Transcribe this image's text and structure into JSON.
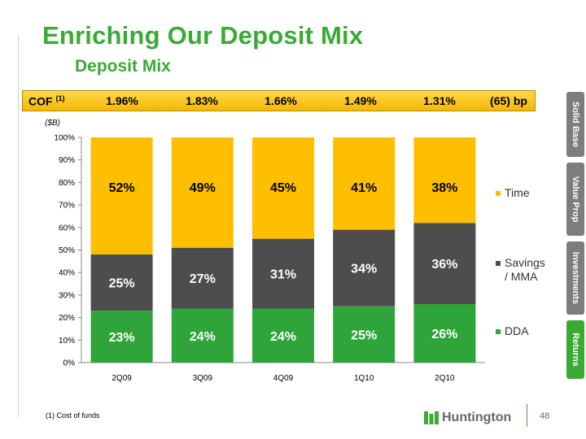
{
  "title": "Enriching Our Deposit Mix",
  "subtitle": "Deposit Mix",
  "cof": {
    "label": "COF",
    "footnote_mark": "(1)",
    "values": [
      "1.96%",
      "1.83%",
      "1.66%",
      "1.49%",
      "1.31%",
      "(65) bp"
    ]
  },
  "unit_label": "($B)",
  "side_tabs": [
    {
      "label": "Solid Base",
      "active": false
    },
    {
      "label": "Value Prop",
      "active": false
    },
    {
      "label": "Investments",
      "active": false
    },
    {
      "label": "Returns",
      "active": true
    }
  ],
  "footnote": "(1)  Cost of funds",
  "logo_text": "Huntington",
  "page_number": "48",
  "colors": {
    "title_green": "#3aaa35",
    "time": "#fdbf00",
    "savings_mma": "#4d4d4d",
    "dda": "#2ea43a",
    "cof_bar": "#f5b800"
  },
  "chart_data": {
    "type": "bar",
    "stacked": true,
    "percent_stacked": true,
    "categories": [
      "2Q09",
      "3Q09",
      "4Q09",
      "1Q10",
      "2Q10"
    ],
    "series": [
      {
        "name": "DDA",
        "values": [
          23,
          24,
          24,
          25,
          26
        ],
        "labels": [
          "23%",
          "24%",
          "24%",
          "25%",
          "26%"
        ],
        "color": "#2ea43a"
      },
      {
        "name": "Savings / MMA",
        "values": [
          25,
          27,
          31,
          34,
          36
        ],
        "labels": [
          "25%",
          "27%",
          "31%",
          "34%",
          "36%"
        ],
        "color": "#4d4d4d"
      },
      {
        "name": "Time",
        "values": [
          52,
          49,
          45,
          41,
          38
        ],
        "labels": [
          "52%",
          "49%",
          "45%",
          "41%",
          "38%"
        ],
        "color": "#fdbf00"
      }
    ],
    "legend": [
      "Time",
      "Savings\n/ MMA",
      "DDA"
    ],
    "y_ticks": [
      "0%",
      "10%",
      "20%",
      "30%",
      "40%",
      "50%",
      "60%",
      "70%",
      "80%",
      "90%",
      "100%"
    ],
    "ylim": [
      0,
      100
    ],
    "legend_position": "right",
    "grid": false
  }
}
